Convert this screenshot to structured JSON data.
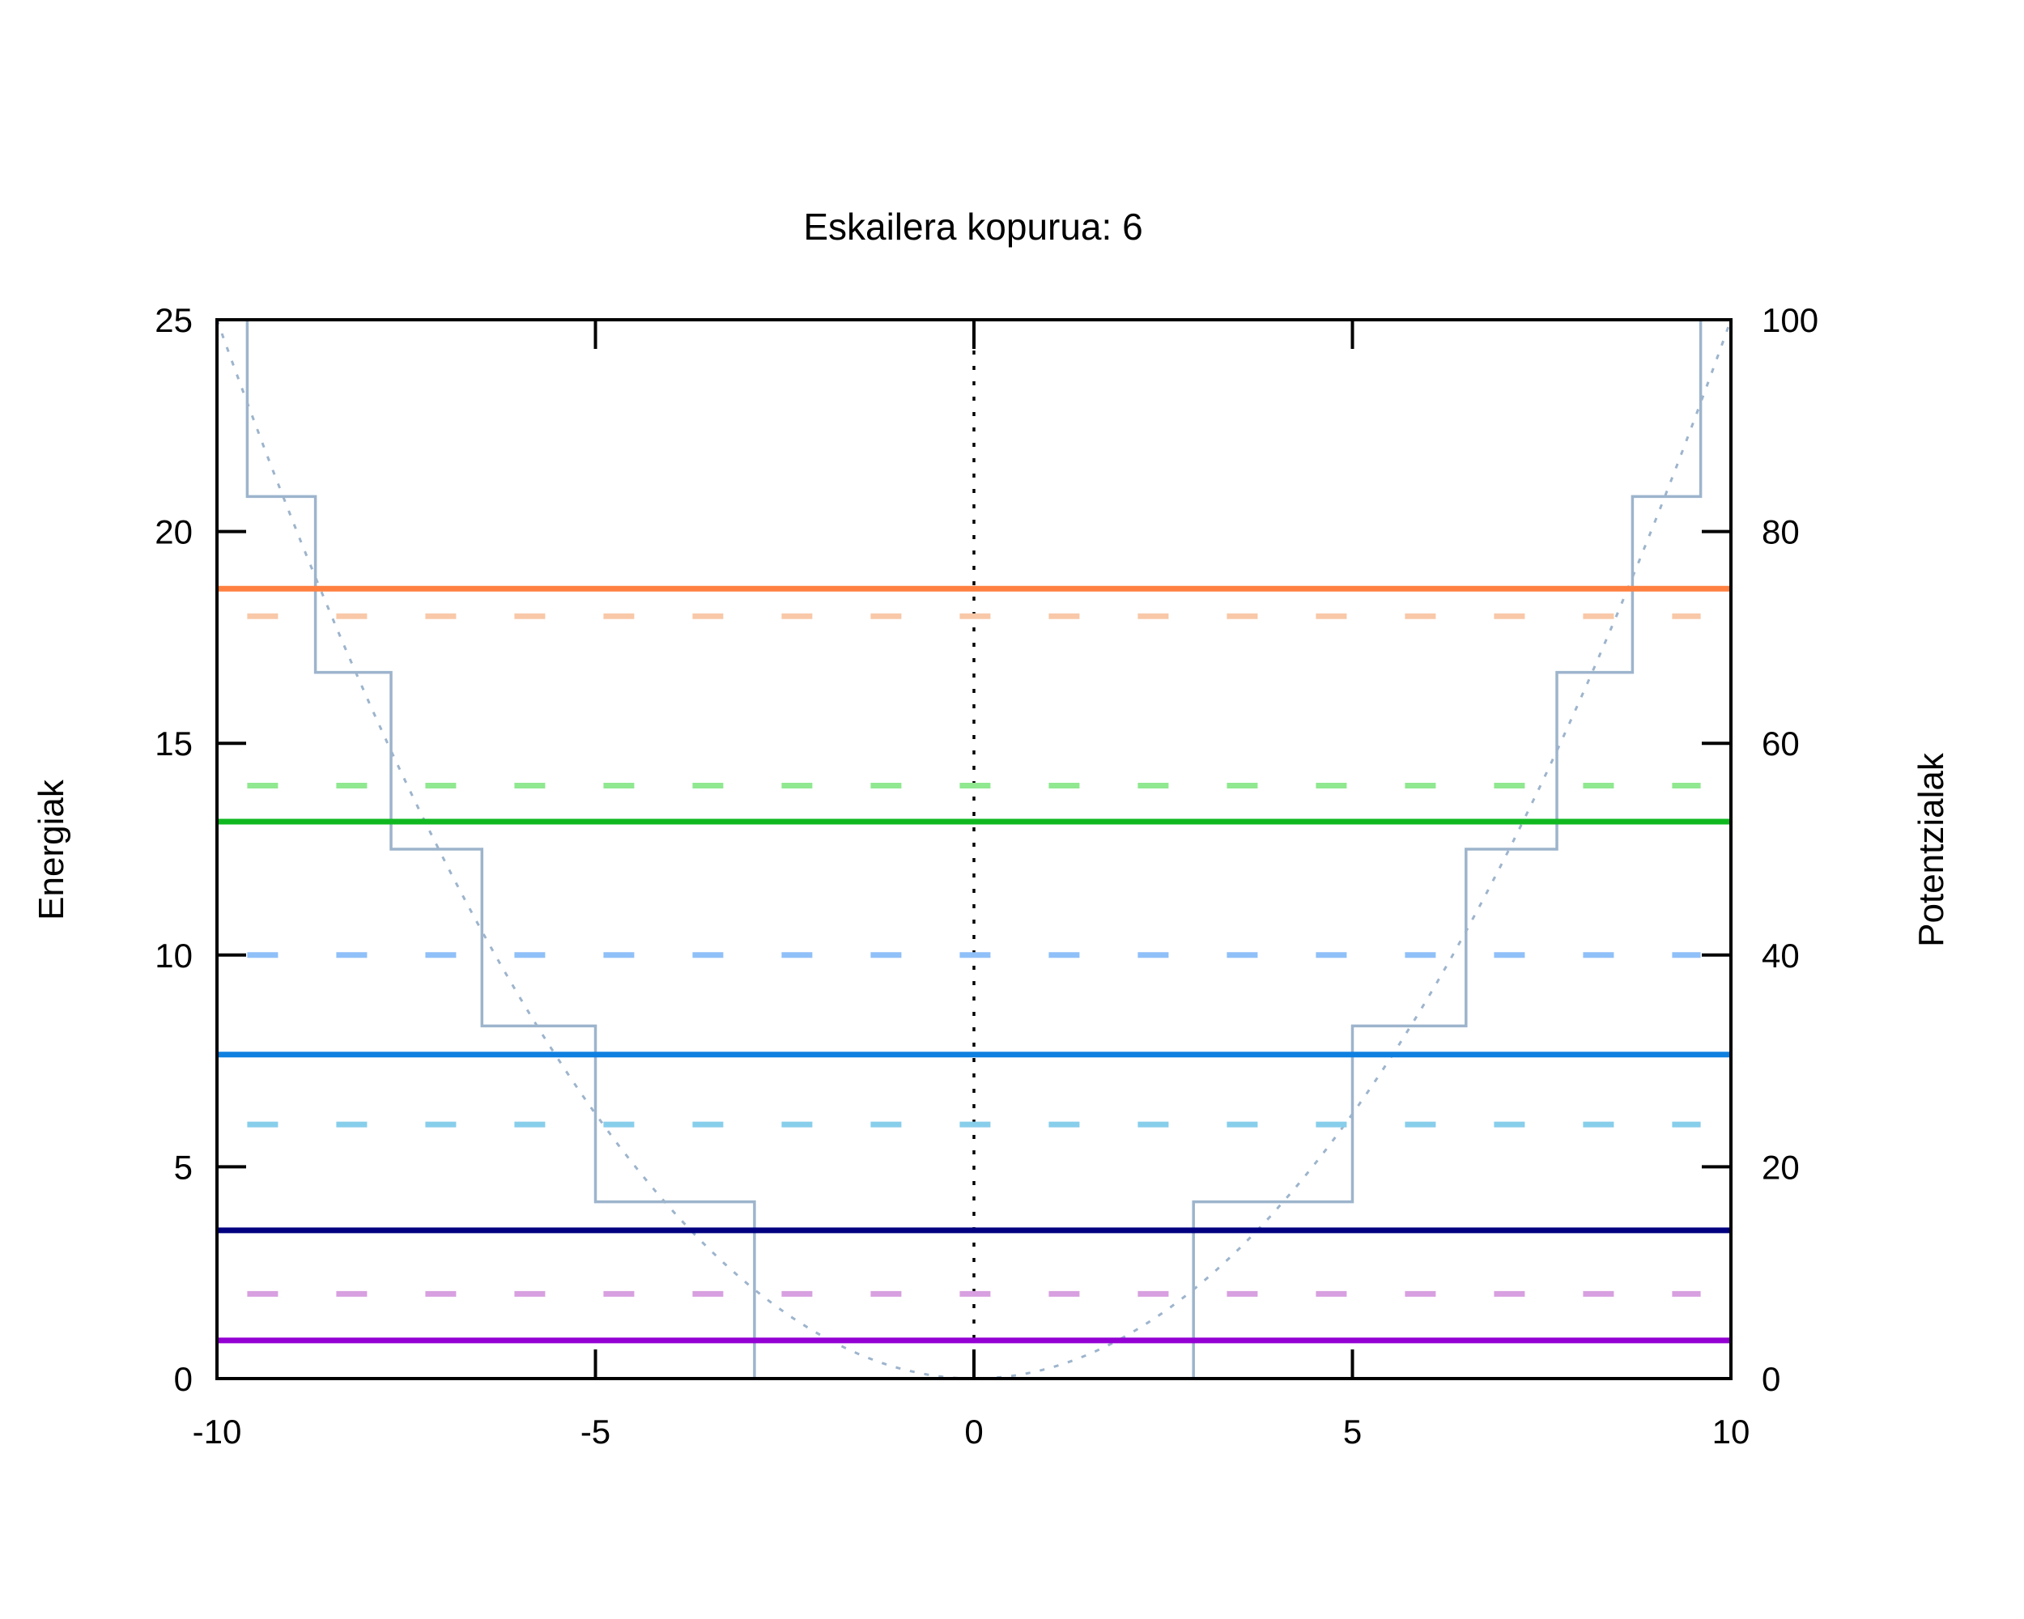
{
  "chart_data": {
    "type": "line",
    "title": "Eskailera kopurua: 6",
    "ylabel": "Energiak",
    "y2label": "Potentzialak",
    "xlabel": "",
    "xlim": [
      -10,
      10
    ],
    "ylim": [
      0,
      25
    ],
    "y2lim": [
      0,
      100
    ],
    "x_ticks": [
      "-10",
      "-5",
      "0",
      "5",
      "10"
    ],
    "y_ticks": [
      "0",
      "5",
      "10",
      "15",
      "20",
      "25"
    ],
    "y2_ticks": [
      "0",
      "20",
      "40",
      "60",
      "80",
      "100"
    ],
    "grid": false,
    "legend": false,
    "colors": {
      "staircase": "#9db4cc",
      "parabola": "#9db4cc",
      "center_line": "#000000",
      "level0": "#9400d3",
      "level0_dashed": "#d8a0e0",
      "level1": "#000080",
      "level1_dashed": "#87ceeb",
      "level2": "#1080e0",
      "level2_dashed": "#90c0f8",
      "level3": "#10b820",
      "level3_dashed": "#90e890",
      "level4": "#ff8040",
      "level4_dashed": "#f8c8a8"
    },
    "series": [
      {
        "kind": "staircase_potential",
        "axis": "y2",
        "style": "solid",
        "x": [
          -9.6,
          -9.6,
          -8.7,
          -8.7,
          -7.7,
          -7.7,
          -6.5,
          -6.5,
          -5.0,
          -5.0,
          -2.9,
          -2.9,
          2.9,
          2.9,
          5.0,
          5.0,
          6.5,
          6.5,
          7.7,
          7.7,
          8.7,
          8.7,
          9.6,
          9.6
        ],
        "y": [
          100,
          83.3,
          83.3,
          66.7,
          66.7,
          50,
          50,
          33.3,
          33.3,
          16.7,
          16.7,
          0,
          0,
          16.7,
          16.7,
          33.3,
          33.3,
          50,
          50,
          66.7,
          66.7,
          83.3,
          83.3,
          100
        ]
      },
      {
        "kind": "harmonic_potential",
        "axis": "y",
        "style": "dotted",
        "formula": "x^2/4"
      },
      {
        "kind": "energy_level",
        "axis": "y",
        "style": "solid",
        "value": 0.9,
        "color_key": "level0"
      },
      {
        "kind": "energy_level",
        "axis": "y",
        "style": "dashed",
        "value": 2.0,
        "color_key": "level0_dashed"
      },
      {
        "kind": "energy_level",
        "axis": "y",
        "style": "solid",
        "value": 3.5,
        "color_key": "level1"
      },
      {
        "kind": "energy_level",
        "axis": "y",
        "style": "dashed",
        "value": 6.0,
        "color_key": "level1_dashed"
      },
      {
        "kind": "energy_level",
        "axis": "y",
        "style": "solid",
        "value": 7.65,
        "color_key": "level2"
      },
      {
        "kind": "energy_level",
        "axis": "y",
        "style": "dashed",
        "value": 10.0,
        "color_key": "level2_dashed"
      },
      {
        "kind": "energy_level",
        "axis": "y",
        "style": "solid",
        "value": 13.15,
        "color_key": "level3"
      },
      {
        "kind": "energy_level",
        "axis": "y",
        "style": "dashed",
        "value": 14.0,
        "color_key": "level3_dashed"
      },
      {
        "kind": "energy_level",
        "axis": "y",
        "style": "dashed",
        "value": 18.0,
        "color_key": "level4_dashed"
      },
      {
        "kind": "energy_level",
        "axis": "y",
        "style": "solid",
        "value": 18.65,
        "color_key": "level4"
      }
    ]
  }
}
